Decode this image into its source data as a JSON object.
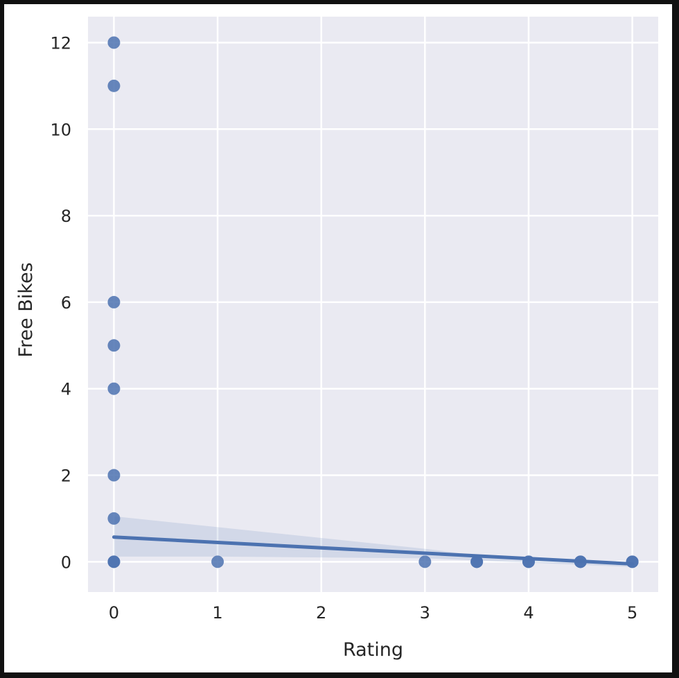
{
  "chart_data": {
    "type": "scatter",
    "xlabel": "Rating",
    "ylabel": "Free Bikes",
    "xlim": [
      -0.25,
      5.25
    ],
    "ylim": [
      -0.7,
      12.6
    ],
    "xticks": [
      0,
      1,
      2,
      3,
      4,
      5
    ],
    "yticks": [
      0,
      2,
      4,
      6,
      8,
      10,
      12
    ],
    "grid": true,
    "legend": "none",
    "colors": {
      "background": "#eaeaf2",
      "grid": "#ffffff",
      "marker": "#4c72b0",
      "text": "#262626"
    },
    "points": [
      {
        "x": 0,
        "y": 12
      },
      {
        "x": 0,
        "y": 11
      },
      {
        "x": 0,
        "y": 6
      },
      {
        "x": 0,
        "y": 5
      },
      {
        "x": 0,
        "y": 4
      },
      {
        "x": 0,
        "y": 2
      },
      {
        "x": 0,
        "y": 1
      },
      {
        "x": 0,
        "y": 0
      },
      {
        "x": 0,
        "y": 0
      },
      {
        "x": 1,
        "y": 0
      },
      {
        "x": 3,
        "y": 0
      },
      {
        "x": 3.5,
        "y": 0
      },
      {
        "x": 3.5,
        "y": 0
      },
      {
        "x": 4,
        "y": 0
      },
      {
        "x": 4,
        "y": 0
      },
      {
        "x": 4.5,
        "y": 0
      },
      {
        "x": 4.5,
        "y": 0
      },
      {
        "x": 5,
        "y": 0
      },
      {
        "x": 5,
        "y": 0
      }
    ],
    "regression_line": {
      "x": [
        0,
        5
      ],
      "y": [
        0.57,
        -0.05
      ]
    },
    "confidence_band": {
      "x": [
        0,
        1,
        2,
        3,
        3.5,
        4,
        4.5,
        5
      ],
      "upper": [
        1.05,
        0.8,
        0.55,
        0.3,
        0.15,
        0.05,
        0.02,
        -0.01
      ],
      "lower": [
        0.12,
        0.12,
        0.1,
        0.08,
        0.03,
        -0.02,
        -0.07,
        -0.12
      ]
    }
  }
}
